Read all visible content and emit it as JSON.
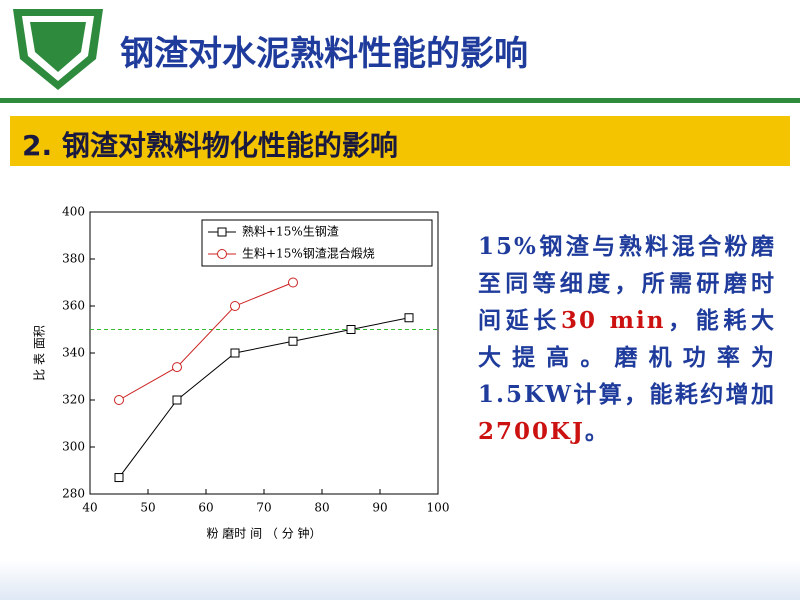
{
  "header": {
    "title": "钢渣对水泥熟料性能的影响"
  },
  "section": {
    "title": "2. 钢渣对熟料物化性能的影响"
  },
  "chart_data": {
    "type": "line",
    "x_label": "粉 磨时 间 （ 分 钟）",
    "y_label": "比 表 面积",
    "xlim": [
      40,
      100
    ],
    "xticks": [
      40,
      50,
      60,
      70,
      80,
      90,
      100
    ],
    "ylim": [
      280,
      400
    ],
    "yticks": [
      280,
      300,
      320,
      340,
      360,
      380,
      400
    ],
    "reference_line": {
      "value": 350,
      "color": "#33bb33"
    },
    "legend": "top-right",
    "series": [
      {
        "name": "熟料+15%生钢渣",
        "color": "#000000",
        "x": [
          45,
          55,
          65,
          75,
          85,
          95
        ],
        "values": [
          287,
          320,
          340,
          345,
          350,
          355
        ]
      },
      {
        "name": "生料+15%钢渣混合煅烧",
        "color": "#cc2222",
        "x": [
          45,
          55,
          65,
          75
        ],
        "values": [
          320,
          334,
          360,
          370
        ]
      }
    ]
  },
  "text": {
    "segments": [
      {
        "text": "15%钢渣与熟料混合粉磨至同等细度，所需研磨时间延长",
        "color": "#1f3c9c"
      },
      {
        "text": "30 min",
        "color": "#cc1111"
      },
      {
        "text": "，能耗大大提高。磨机功率为1.5KW计算，能耗约增加",
        "color": "#1f3c9c"
      },
      {
        "text": "2700KJ",
        "color": "#cc1111"
      },
      {
        "text": "。",
        "color": "#1f3c9c"
      }
    ]
  }
}
